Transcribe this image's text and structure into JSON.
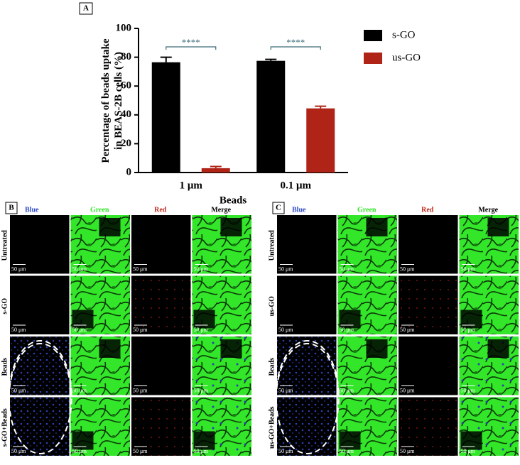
{
  "chart_data": {
    "type": "bar",
    "panel_label": "A",
    "ylabel": [
      "Percentage of beads uptake",
      "in BEAS-2B cells (%)"
    ],
    "xlabel": "Beads",
    "categories": [
      "1 μm",
      "0.1 μm"
    ],
    "series": [
      {
        "name": "s-GO",
        "color": "#000000",
        "values": [
          76.5,
          77.5
        ],
        "errors": [
          3.5,
          1
        ]
      },
      {
        "name": "us-GO",
        "color": "#b02418",
        "values": [
          3,
          44.5
        ],
        "errors": [
          1.2,
          1.5
        ]
      }
    ],
    "annotations": [
      "****",
      "****"
    ],
    "ylim": [
      0,
      100
    ],
    "yticks": [
      0,
      20,
      40,
      60,
      80,
      100
    ],
    "grid": false
  },
  "panels": [
    {
      "label": "B",
      "columns": [
        "Blue",
        "Green",
        "Red",
        "Merge"
      ],
      "rows": [
        "Untreated",
        "s-GO",
        "Beads",
        "s-GO+Beads"
      ],
      "scale_bar": "50 μm"
    },
    {
      "label": "C",
      "columns": [
        "Blue",
        "Green",
        "Red",
        "Merge"
      ],
      "rows": [
        "Untreated",
        "us-GO",
        "Beads",
        "us-GO+Beads"
      ],
      "scale_bar": "50 μm"
    }
  ]
}
